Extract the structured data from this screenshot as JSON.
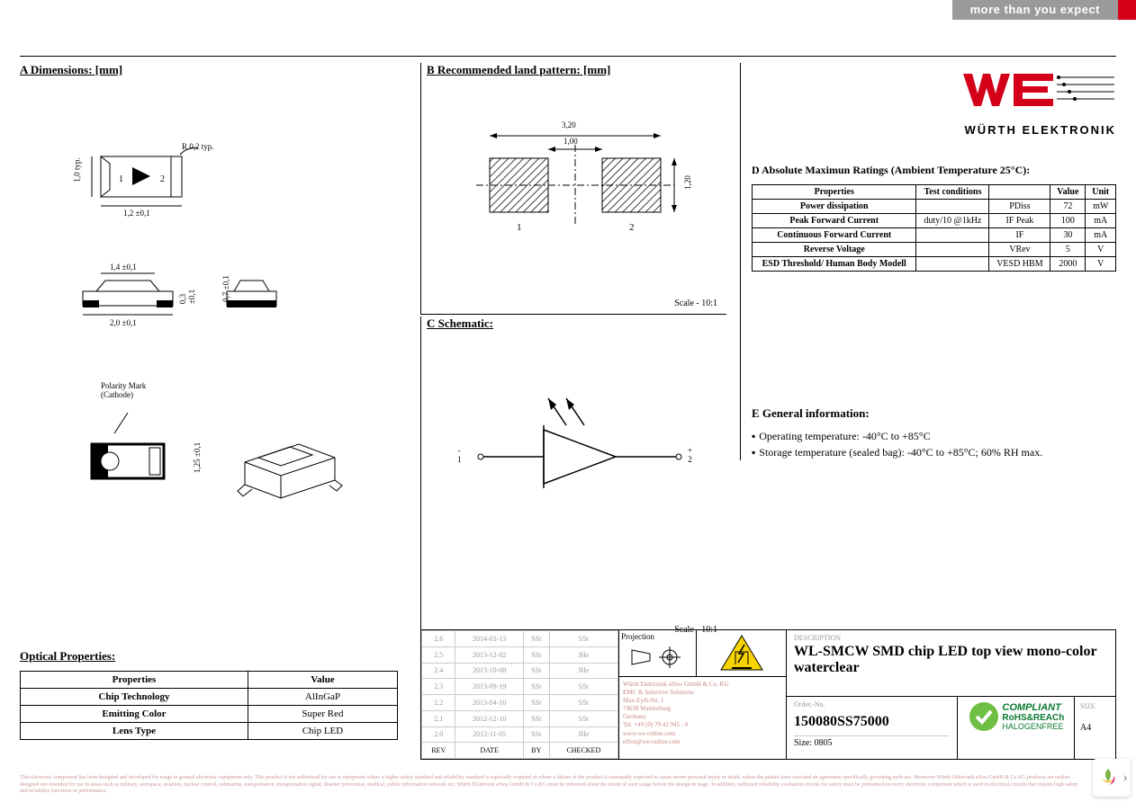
{
  "banner": {
    "tagline": "more than you expect"
  },
  "brand": {
    "name": "WÜRTH ELEKTRONIK",
    "logo_color": "#d4001a"
  },
  "sections": {
    "a": {
      "title": "A Dimensions: [mm]",
      "dims": {
        "body_w": "2,0 ±0,1",
        "body_l": "1,2 ±0,1",
        "body_h": "1,0 typ.",
        "radius": "R 0,2 typ.",
        "side_w": "1,4 ±0,1",
        "side_h": "0,3 ±0,1",
        "end_w": "0,7 ±0,1",
        "iso_h": "1,25 ±0,1",
        "polarity": "Polarity Mark\n(Cathode)",
        "pin1": "1",
        "pin2": "2"
      }
    },
    "b": {
      "title": "B Recommended land pattern: [mm]",
      "dims": {
        "span": "3,20",
        "gap": "1,00",
        "pad_h": "1,20",
        "pad1": "1",
        "pad2": "2"
      },
      "scale": "Scale - 10:1"
    },
    "c": {
      "title": "C Schematic:",
      "pins": {
        "cathode": "-\n1",
        "anode": "+\n2"
      },
      "scale": "Scale - 10:1"
    },
    "d": {
      "title": "D Absolute Maximun Ratings (Ambient Temperature 25°C):",
      "columns": [
        "Properties",
        "Test conditions",
        "",
        "Value",
        "Unit"
      ],
      "rows": [
        [
          "Power dissipation",
          "",
          "PDiss",
          "72",
          "mW"
        ],
        [
          "Peak Forward Current",
          "duty/10 @1kHz",
          "IF Peak",
          "100",
          "mA"
        ],
        [
          "Continuous Forward Current",
          "",
          "IF",
          "30",
          "mA"
        ],
        [
          "Reverse Voltage",
          "",
          "VRev",
          "5",
          "V"
        ],
        [
          "ESD Threshold/ Human Body Modell",
          "",
          "VESD HBM",
          "2000",
          "V"
        ]
      ]
    },
    "e": {
      "title": "E General information:",
      "items": [
        "Operating temperature: -40°C to +85°C",
        "Storage temperature (sealed bag): -40°C to +85°C; 60% RH max."
      ]
    },
    "optical": {
      "title": "Optical Properties:",
      "columns": [
        "Properties",
        "Value"
      ],
      "rows": [
        [
          "Chip Technology",
          "AlInGaP"
        ],
        [
          "Emitting Color",
          "Super Red"
        ],
        [
          "Lens Type",
          "Chip LED"
        ]
      ]
    }
  },
  "titleblock": {
    "projection_label": "Projection",
    "revisions": {
      "header": [
        "REV",
        "DATE",
        "BY",
        "CHECKED"
      ],
      "rows": [
        [
          "2.6",
          "2014-03-13",
          "SSt",
          "SSt"
        ],
        [
          "2.5",
          "2013-12-02",
          "SSt",
          "JHe"
        ],
        [
          "2.4",
          "2013-10-08",
          "SSt",
          "JHe"
        ],
        [
          "2.3",
          "2013-09-19",
          "SSt",
          "SSt"
        ],
        [
          "2.2",
          "2013-04-10",
          "SSt",
          "SSt"
        ],
        [
          "2.1",
          "2012-12-10",
          "SSt",
          "SSt"
        ],
        [
          "2.0",
          "2012-11-05",
          "SSt",
          "JHe"
        ]
      ]
    },
    "address": "Würth Elektronik eiSos GmbH & Co. KG\nEMC & Inductive Solutions\nMax-Eyth-Str. 1\n74638 Waldenburg\nGermany\nTel. +49 (0) 79 42 945 - 0\nwww.we-online.com\neiSos@we-online.com",
    "description_label": "DESCRIPTION",
    "description": "WL-SMCW SMD chip LED top view mono-color waterclear",
    "order_label": "Order.-No.",
    "order_no": "150080SS75000",
    "size": "Size: 0805",
    "compliant": {
      "l1": "COMPLIANT",
      "l2": "RoHS&REACh",
      "l3": "HALOGENFREE"
    },
    "page_label": "SIZE",
    "page_no": "A4"
  },
  "fineprint": "This electronic component has been designed and developed for usage in general electronic equipment only. This product is not authorized for use in equipment where a higher safety standard and reliability standard is especially required or where a failure of the product is reasonably expected to cause severe personal injury or death, unless the parties have executed an agreement specifically governing such use. Moreover Würth Elektronik eiSos GmbH & Co KG products are neither designed nor intended for use in areas such as military, aerospace, aviation, nuclear control, submarine, transportation, transportation signal, disaster prevention, medical, public information network etc. Würth Elektronik eiSos GmbH & Co KG must be informed about the intent of such usage before the design-in stage. In addition, sufficient reliability evaluation checks for safety must be performed on every electronic component which is used in electrical circuits that require high safety and reliability functions or performance."
}
